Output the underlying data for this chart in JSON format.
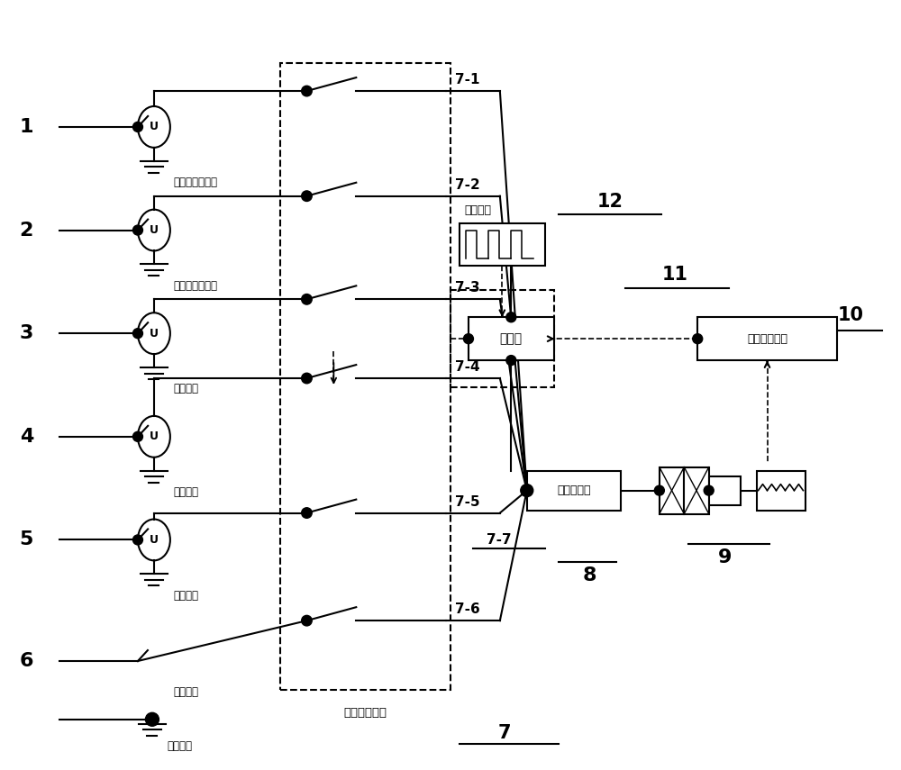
{
  "bg_color": "#ffffff",
  "sources": [
    {
      "num": "1",
      "label": "预加载高电压源"
    },
    {
      "num": "2",
      "label": "预加载稳电压源"
    },
    {
      "num": "3",
      "label": "高电压源"
    },
    {
      "num": "4",
      "label": "稳电压源"
    },
    {
      "num": "5",
      "label": "负电压源"
    }
  ],
  "zero_label": "零电压源",
  "box_label": "高速切换开关",
  "sw_labels": [
    "7-1",
    "7-2",
    "7-3",
    "7-4",
    "7-5",
    "7-6",
    "7-7"
  ],
  "controller_label": "控制器",
  "signal_label": "控制信号",
  "current_detector_label": "电流检测器",
  "pressure_label": "压力传感系统",
  "num_labels": [
    "7",
    "8",
    "9",
    "10",
    "11",
    "12"
  ]
}
